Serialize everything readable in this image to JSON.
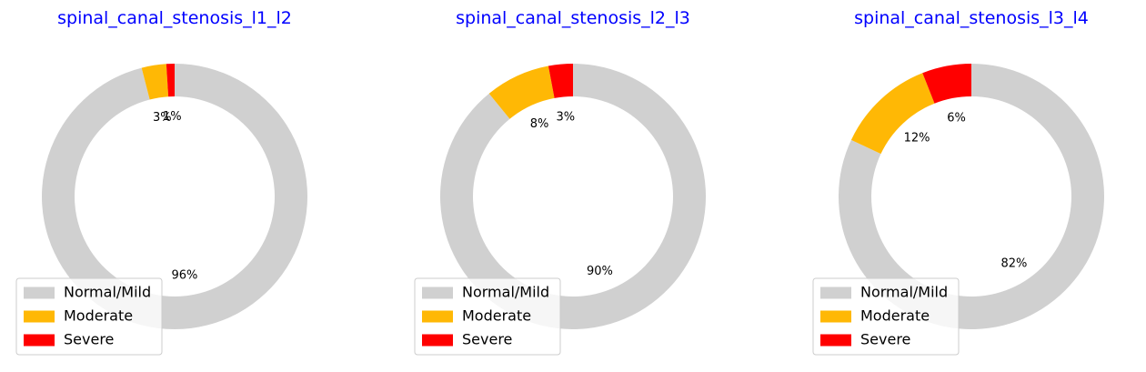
{
  "chart_data": [
    {
      "type": "pie",
      "title": "spinal_canal_stenosis_l1_l2",
      "categories": [
        "Normal/Mild",
        "Moderate",
        "Severe"
      ],
      "values": [
        96,
        3,
        1
      ],
      "labels": [
        "96%",
        "3%",
        "1%"
      ],
      "colors": [
        "#d0d0d0",
        "#ffb805",
        "#ff0000"
      ],
      "legend": "lower-left",
      "donut": true
    },
    {
      "type": "pie",
      "title": "spinal_canal_stenosis_l2_l3",
      "categories": [
        "Normal/Mild",
        "Moderate",
        "Severe"
      ],
      "values": [
        90,
        8,
        3
      ],
      "labels": [
        "90%",
        "8%",
        "3%"
      ],
      "colors": [
        "#d0d0d0",
        "#ffb805",
        "#ff0000"
      ],
      "legend": "lower-left",
      "donut": true
    },
    {
      "type": "pie",
      "title": "spinal_canal_stenosis_l3_l4",
      "categories": [
        "Normal/Mild",
        "Moderate",
        "Severe"
      ],
      "values": [
        82,
        12,
        6
      ],
      "labels": [
        "82%",
        "12%",
        "6%"
      ],
      "colors": [
        "#d0d0d0",
        "#ffb805",
        "#ff0000"
      ],
      "legend": "lower-left",
      "donut": true
    }
  ],
  "title_color": "#0000ff"
}
